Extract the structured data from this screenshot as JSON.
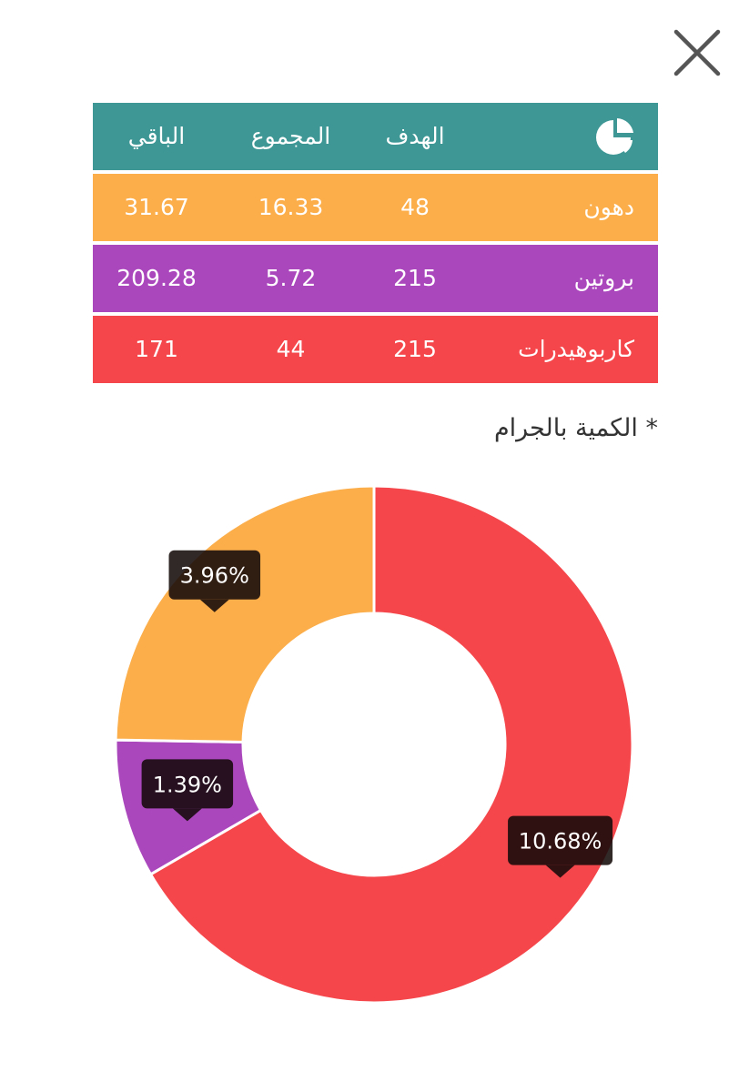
{
  "header": {
    "close_icon": "close-icon",
    "table_icon": "pie-chart-icon"
  },
  "table": {
    "columns": {
      "target": "الهدف",
      "total": "المجموع",
      "remaining": "الباقي"
    },
    "rows": [
      {
        "name": "دهون",
        "target": "48",
        "total": "16.33",
        "remaining": "31.67",
        "color": "#FBAE4A"
      },
      {
        "name": "بروتين",
        "target": "215",
        "total": "5.72",
        "remaining": "209.28",
        "color": "#AB47BD"
      },
      {
        "name": "كاربوهيدرات",
        "target": "215",
        "total": "44",
        "remaining": "171",
        "color": "#F5474B"
      }
    ],
    "header_color": "#3E9795"
  },
  "note": "* الكمية بالجرام",
  "chart_data": {
    "type": "pie",
    "donut": true,
    "categories": [
      "كاربوهيدرات",
      "بروتين",
      "دهون"
    ],
    "values": [
      44,
      5.72,
      16.33
    ],
    "labels": [
      "10.68%",
      "1.39%",
      "3.96%"
    ],
    "colors": [
      "#F5474B",
      "#AB47BD",
      "#FBAE4A"
    ],
    "start_angle": "top",
    "direction": "clockwise"
  }
}
